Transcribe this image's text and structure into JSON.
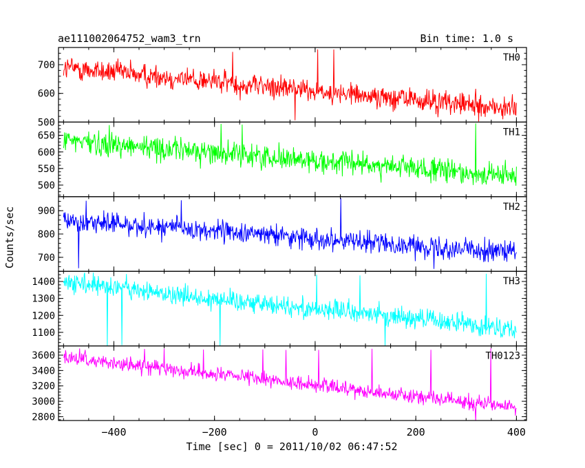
{
  "header": {
    "title": "ae111002064752_wam3_trn",
    "bin_time": "Bin time: 1.0 s"
  },
  "chart_data": {
    "type": "line",
    "xlabel": "Time [sec] 0 = 2011/10/02 06:47:52",
    "ylabel": "Counts/sec",
    "xlim": [
      -510,
      420
    ],
    "x_ticks": [
      -400,
      -200,
      0,
      200,
      400
    ],
    "x_tick_labels": [
      "−400",
      "−200",
      "0",
      "200",
      "400"
    ],
    "x_range_data": [
      -500,
      400
    ],
    "grid": false,
    "panels": [
      {
        "name": "TH0",
        "color": "#ff0000",
        "ylim": [
          500,
          760
        ],
        "y_ticks": [
          500,
          600,
          700
        ],
        "trend_start": 690,
        "trend_end": 545,
        "noise": 38,
        "spike_high": 755,
        "spike_low": 510
      },
      {
        "name": "TH1",
        "color": "#00ff00",
        "ylim": [
          465,
          690
        ],
        "y_ticks": [
          500,
          550,
          600,
          650
        ],
        "trend_start": 635,
        "trend_end": 525,
        "noise": 33,
        "spike_high": 690,
        "spike_low": 470
      },
      {
        "name": "TH2",
        "color": "#0000ff",
        "ylim": [
          640,
          960
        ],
        "y_ticks": [
          700,
          800,
          900
        ],
        "trend_start": 860,
        "trend_end": 720,
        "noise": 42,
        "spike_high": 955,
        "spike_low": 655
      },
      {
        "name": "TH3",
        "color": "#00ffff",
        "ylim": [
          1020,
          1460
        ],
        "y_ticks": [
          1100,
          1200,
          1300,
          1400
        ],
        "trend_start": 1390,
        "trend_end": 1120,
        "noise": 55,
        "spike_high": 1450,
        "spike_low": 1030
      },
      {
        "name": "TH0123",
        "color": "#ff00ff",
        "ylim": [
          2750,
          3720
        ],
        "y_ticks": [
          2800,
          3000,
          3200,
          3400,
          3600
        ],
        "trend_start": 3570,
        "trend_end": 2920,
        "noise": 85,
        "spike_high": 3690,
        "spike_low": 2760
      }
    ]
  }
}
